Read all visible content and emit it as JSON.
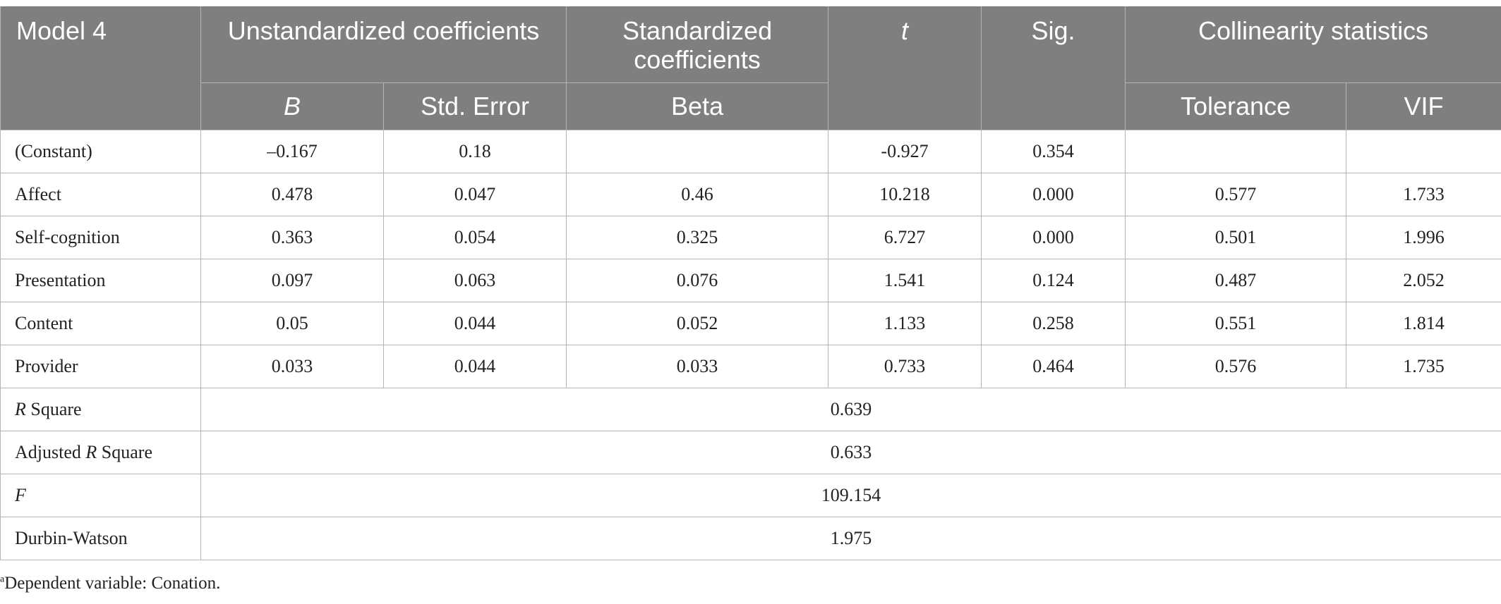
{
  "table": {
    "header": {
      "model": "Model 4",
      "unstd": "Unstandardized coefficients",
      "std": "Standardized coefficients",
      "t": "t",
      "sig": "Sig.",
      "collin": "Collinearity statistics",
      "b": "B",
      "se": "Std. Error",
      "beta": "Beta",
      "tolerance": "Tolerance",
      "vif": "VIF"
    },
    "rows": [
      {
        "label": "(Constant)",
        "b": "–0.167",
        "se": "0.18",
        "beta": "",
        "t": "-0.927",
        "sig": "0.354",
        "tolerance": "",
        "vif": ""
      },
      {
        "label": "Affect",
        "b": "0.478",
        "se": "0.047",
        "beta": "0.46",
        "t": "10.218",
        "sig": "0.000",
        "tolerance": "0.577",
        "vif": "1.733"
      },
      {
        "label": "Self-cognition",
        "b": "0.363",
        "se": "0.054",
        "beta": "0.325",
        "t": "6.727",
        "sig": "0.000",
        "tolerance": "0.501",
        "vif": "1.996"
      },
      {
        "label": "Presentation",
        "b": "0.097",
        "se": "0.063",
        "beta": "0.076",
        "t": "1.541",
        "sig": "0.124",
        "tolerance": "0.487",
        "vif": "2.052"
      },
      {
        "label": "Content",
        "b": "0.05",
        "se": "0.044",
        "beta": "0.052",
        "t": "1.133",
        "sig": "0.258",
        "tolerance": "0.551",
        "vif": "1.814"
      },
      {
        "label": "Provider",
        "b": "0.033",
        "se": "0.044",
        "beta": "0.033",
        "t": "0.733",
        "sig": "0.464",
        "tolerance": "0.576",
        "vif": "1.735"
      }
    ],
    "summary": {
      "r_square": {
        "label_italic": "R",
        "label_rest": " Square",
        "value": "0.639"
      },
      "adj_r_square": {
        "label_pre": "Adjusted ",
        "label_italic": "R",
        "label_rest": " Square",
        "value": "0.633"
      },
      "f": {
        "label_italic": "F",
        "value": "109.154"
      },
      "durbin_watson": {
        "label": "Durbin-Watson",
        "value": "1.975"
      }
    }
  },
  "footnote": {
    "marker": "a",
    "text": "Dependent variable: Conation."
  }
}
